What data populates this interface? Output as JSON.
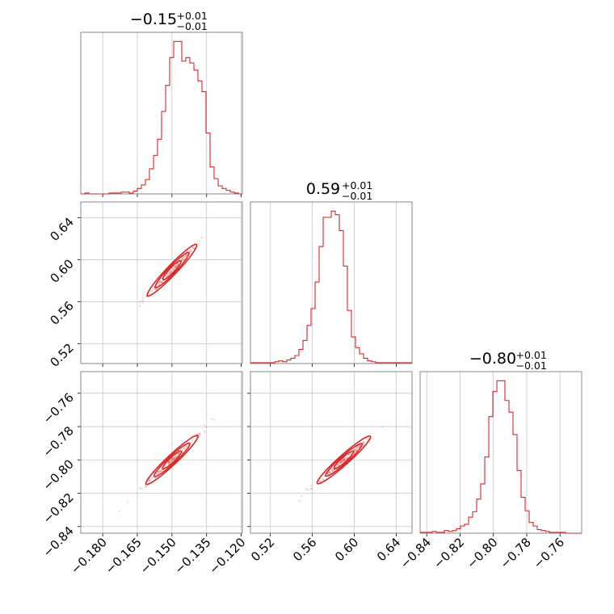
{
  "chart_data": {
    "type": "corner",
    "color": "#d62728",
    "parameters": [
      {
        "median": -0.15,
        "median_label": "−0.15",
        "upper": "+0.01",
        "lower": "−0.01",
        "range": [
          -0.1895,
          -0.1195
        ],
        "ticks": [
          -0.18,
          -0.165,
          -0.15,
          -0.135,
          -0.12
        ],
        "tick_labels": [
          "−0.180",
          "−0.165",
          "−0.150",
          "−0.135",
          "−0.120"
        ],
        "hist_start": -0.1895,
        "hist_bin": 0.00175,
        "hist": [
          0,
          1,
          0,
          0,
          0,
          0,
          0,
          1,
          1,
          1,
          2,
          2,
          1,
          3,
          6,
          10,
          16,
          28,
          43,
          61,
          92,
          121,
          152,
          170,
          170,
          148,
          152,
          146,
          138,
          126,
          114,
          68,
          30,
          17,
          9,
          6,
          4,
          2,
          1,
          0
        ]
      },
      {
        "median": 0.59,
        "median_label": "0.59",
        "upper": "+0.01",
        "lower": "−0.01",
        "range": [
          0.501,
          0.655
        ],
        "ticks": [
          0.52,
          0.56,
          0.6,
          0.64
        ],
        "tick_labels": [
          "0.52",
          "0.56",
          "0.60",
          "0.64"
        ],
        "hist_start": 0.501,
        "hist_bin": 0.00385,
        "hist": [
          1,
          1,
          1,
          1,
          1,
          1,
          2,
          3,
          2,
          4,
          6,
          9,
          16,
          26,
          43,
          62,
          92,
          132,
          165,
          165,
          172,
          168,
          150,
          110,
          60,
          30,
          18,
          11,
          6,
          3,
          2,
          1,
          1,
          1,
          1,
          1,
          1,
          1,
          1,
          1
        ]
      },
      {
        "median": -0.8,
        "median_label": "−0.80",
        "upper": "+0.01",
        "lower": "−0.01",
        "range": [
          -0.844,
          -0.747
        ],
        "ticks": [
          -0.84,
          -0.82,
          -0.8,
          -0.78,
          -0.76
        ],
        "tick_labels": [
          "−0.84",
          "−0.82",
          "−0.80",
          "−0.78",
          "−0.76"
        ],
        "hist_start": -0.844,
        "hist_bin": 0.002425,
        "hist": [
          1,
          1,
          1,
          2,
          1,
          1,
          3,
          2,
          3,
          5,
          8,
          10,
          18,
          24,
          38,
          55,
          85,
          130,
          158,
          170,
          170,
          148,
          135,
          110,
          70,
          40,
          25,
          12,
          8,
          4,
          3,
          2,
          1,
          1,
          1,
          1,
          0,
          0,
          0,
          0
        ]
      }
    ],
    "correlations": [
      {
        "x": 0,
        "y": 1,
        "slope": 2.3
      },
      {
        "x": 0,
        "y": 2,
        "slope": 1.3
      },
      {
        "x": 1,
        "y": 2,
        "slope": 0.56
      }
    ],
    "contour_levels_sigma": [
      1,
      2,
      3
    ],
    "grid": true,
    "legend": "none"
  }
}
